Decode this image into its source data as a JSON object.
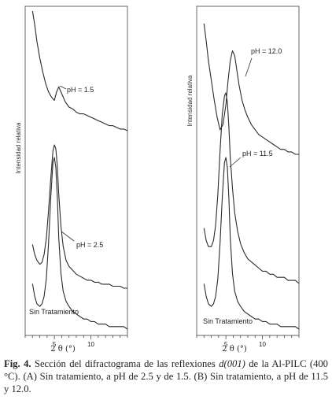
{
  "chart_data": [
    {
      "type": "line",
      "panel": "A",
      "ylabel": "Intensidad relativa",
      "xlabel": "2 θ (°)",
      "xlim": [
        1,
        15
      ],
      "xticks": [
        5,
        10
      ],
      "series": [
        {
          "name": "pH = 1.5",
          "x": [
            2.0,
            2.3,
            2.6,
            3.0,
            3.4,
            3.8,
            4.2,
            4.6,
            5.0,
            5.3,
            5.6,
            6.0,
            6.5,
            7.0,
            7.5,
            8.0,
            8.5,
            9.0,
            9.5,
            10.0,
            10.5,
            11.0,
            11.5,
            12.0,
            12.5,
            13.0,
            13.5,
            14.0,
            14.5,
            15.0
          ],
          "y": [
            100,
            92,
            82,
            72,
            64,
            57,
            52,
            49,
            47,
            52,
            55,
            51,
            46,
            43,
            42,
            40,
            39,
            39,
            38,
            37,
            36,
            35,
            34,
            33,
            32,
            32,
            31,
            30,
            30,
            29
          ]
        },
        {
          "name": "pH = 2.5",
          "x": [
            2.0,
            2.3,
            2.6,
            3.0,
            3.3,
            3.6,
            3.9,
            4.2,
            4.5,
            4.8,
            5.0,
            5.2,
            5.4,
            5.6,
            5.9,
            6.2,
            6.6,
            7.0,
            7.5,
            8.0,
            8.5,
            9.0,
            9.5,
            10.0,
            10.5,
            11.0,
            11.5,
            12.0,
            12.5,
            13.0,
            13.5,
            14.0,
            14.5,
            15.0
          ],
          "y": [
            33,
            28,
            25,
            23,
            24,
            28,
            36,
            50,
            66,
            80,
            83,
            81,
            72,
            58,
            42,
            32,
            25,
            22,
            20,
            18,
            17,
            16,
            15,
            15,
            14,
            14,
            13,
            13,
            13,
            12,
            12,
            12,
            11,
            11
          ]
        },
        {
          "name": "Sin Tratamiento",
          "x": [
            2.0,
            2.3,
            2.6,
            3.0,
            3.3,
            3.6,
            3.9,
            4.2,
            4.5,
            4.8,
            5.0,
            5.2,
            5.4,
            5.6,
            5.9,
            6.2,
            6.6,
            7.0,
            7.5,
            8.0,
            8.5,
            9.0,
            9.5,
            10.0,
            10.5,
            11.0,
            11.5,
            12.0,
            12.5,
            13.0,
            13.5,
            14.0,
            14.5,
            15.0
          ],
          "y": [
            18,
            13,
            10,
            9,
            10,
            13,
            20,
            34,
            52,
            66,
            68,
            64,
            52,
            36,
            22,
            15,
            11,
            9,
            7,
            6,
            5,
            4,
            4,
            3,
            3,
            2,
            2,
            2,
            1,
            1,
            1,
            1,
            1,
            0
          ]
        }
      ]
    },
    {
      "type": "line",
      "panel": "B",
      "ylabel": "Intensidad relativa",
      "xlabel": "2 θ (°)",
      "xlim": [
        1,
        15
      ],
      "xticks": [
        5,
        10
      ],
      "series": [
        {
          "name": "pH = 12.0",
          "x": [
            2.0,
            2.3,
            2.6,
            3.0,
            3.4,
            3.8,
            4.2,
            4.6,
            5.0,
            5.3,
            5.6,
            5.9,
            6.2,
            6.5,
            6.8,
            7.2,
            7.6,
            8.0,
            8.5,
            9.0,
            9.5,
            10.0,
            10.5,
            11.0,
            11.5,
            12.0,
            12.5,
            13.0,
            13.5,
            14.0,
            14.5,
            15.0
          ],
          "y": [
            95,
            88,
            80,
            72,
            64,
            57,
            52,
            54,
            62,
            72,
            80,
            84,
            82,
            76,
            70,
            64,
            60,
            57,
            54,
            52,
            50,
            49,
            48,
            47,
            46,
            45,
            44,
            44,
            43,
            43,
            42,
            42
          ]
        },
        {
          "name": "pH = 11.5",
          "x": [
            2.0,
            2.3,
            2.6,
            3.0,
            3.3,
            3.6,
            3.9,
            4.2,
            4.5,
            4.8,
            5.0,
            5.2,
            5.4,
            5.6,
            5.9,
            6.2,
            6.6,
            7.0,
            7.5,
            8.0,
            8.5,
            9.0,
            9.5,
            10.0,
            10.5,
            11.0,
            11.5,
            12.0,
            12.5,
            13.0,
            13.5,
            14.0,
            14.5,
            15.0
          ],
          "y": [
            33,
            29,
            27,
            27,
            29,
            34,
            44,
            58,
            70,
            76,
            77,
            74,
            66,
            56,
            46,
            38,
            32,
            28,
            25,
            23,
            22,
            21,
            20,
            19,
            19,
            18,
            18,
            17,
            17,
            17,
            16,
            16,
            16,
            15
          ]
        },
        {
          "name": "Sin Tratamiento",
          "x": [
            2.0,
            2.3,
            2.6,
            3.0,
            3.3,
            3.6,
            3.9,
            4.2,
            4.5,
            4.8,
            5.0,
            5.2,
            5.4,
            5.6,
            5.9,
            6.2,
            6.6,
            7.0,
            7.5,
            8.0,
            8.5,
            9.0,
            9.5,
            10.0,
            10.5,
            11.0,
            11.5,
            12.0,
            12.5,
            13.0,
            13.5,
            14.0,
            14.5,
            15.0
          ],
          "y": [
            18,
            13,
            10,
            9,
            10,
            13,
            20,
            34,
            52,
            66,
            68,
            64,
            52,
            36,
            22,
            15,
            11,
            9,
            7,
            6,
            5,
            4,
            4,
            3,
            3,
            2,
            2,
            2,
            1,
            1,
            1,
            1,
            1,
            0
          ]
        }
      ]
    }
  ],
  "caption": {
    "fig_label": "Fig. 4.",
    "text_before": " Sección del difractograma de las reflexiones ",
    "reflection": "d(001)",
    "text_after": " de la Al-PILC (400 °C). (A) Sin tratamiento, a pH de 2.5 y de 1.5. (B) Sin tratamiento, a pH de 11.5 y 12.0."
  }
}
